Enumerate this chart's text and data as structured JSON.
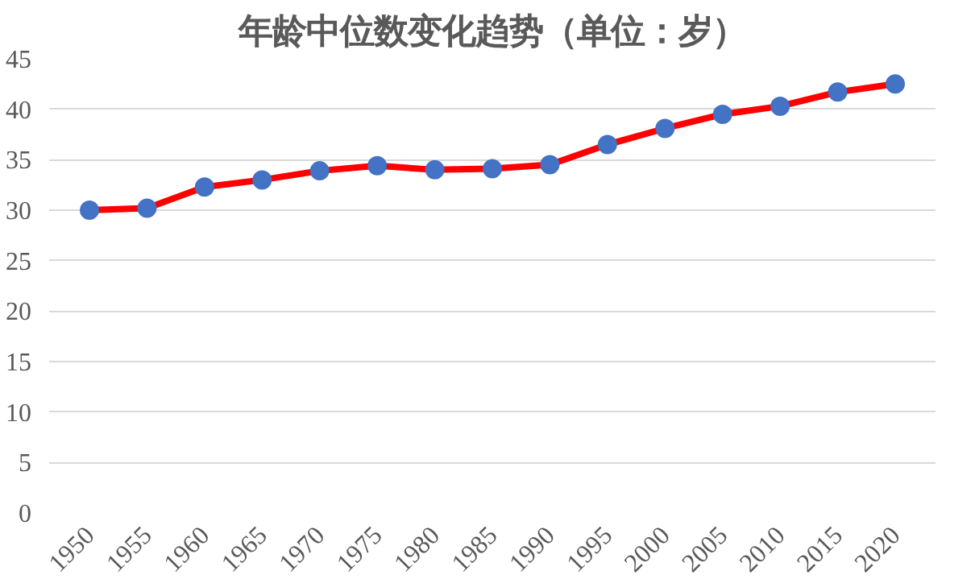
{
  "chart_data": {
    "type": "line",
    "title": "年龄中位数变化趋势（单位：岁）",
    "categories": [
      "1950",
      "1955",
      "1960",
      "1965",
      "1970",
      "1975",
      "1980",
      "1985",
      "1990",
      "1995",
      "2000",
      "2005",
      "2010",
      "2015",
      "2020"
    ],
    "series": [
      {
        "color": "#ff0000",
        "colors": [
          "#4472c4",
          "#4472c4",
          "#4472c4",
          "#4472c4",
          "#4472c4",
          "#4472c4",
          "#4472c4",
          "#4472c4",
          "#4472c4",
          "#4472c4",
          "#4472c4",
          "#4472c4",
          "#4472c4",
          "#4472c4",
          "#4472c4"
        ],
        "values": [
          30.0,
          30.2,
          32.3,
          33.0,
          33.9,
          34.4,
          34.0,
          34.1,
          34.5,
          36.5,
          38.1,
          39.5,
          40.3,
          41.7,
          42.5
        ]
      }
    ],
    "ylim": [
      0,
      45
    ],
    "yticks": [
      0,
      5,
      10,
      15,
      20,
      25,
      30,
      35,
      40,
      45
    ],
    "grid": "y",
    "marker": "circle"
  }
}
